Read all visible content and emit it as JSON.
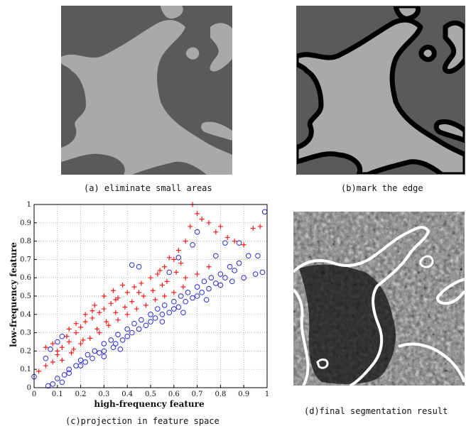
{
  "captions": {
    "a": "(a) eliminate small areas",
    "b": "(b)mark the edge",
    "c": "(c)projection in feature space",
    "d": "(d)final segmentation result"
  },
  "colors": {
    "dark_region": "#5a5a5a",
    "light_region": "#a9a9a9",
    "edge": "#000000",
    "series_plus": "#ff1a1a",
    "series_circle": "#2a2ad6",
    "contour": "#ffffff"
  },
  "chart_data": {
    "type": "scatter",
    "xlabel": "high-frequency feature",
    "ylabel": "low-frequency feature",
    "xlim": [
      0,
      1
    ],
    "ylim": [
      0,
      1
    ],
    "xticks": [
      "0",
      "0.1",
      "0.2",
      "0.3",
      "0.4",
      "0.5",
      "0.6",
      "0.7",
      "0.8",
      "0.9",
      "1"
    ],
    "yticks": [
      "0",
      "0.1",
      "0.2",
      "0.3",
      "0.4",
      "0.5",
      "0.6",
      "0.7",
      "0.8",
      "0.9",
      "1"
    ],
    "grid": true,
    "series": [
      {
        "marker": "plus",
        "color": "#ff1a1a",
        "points": [
          [
            0.02,
            0.09
          ],
          [
            0.05,
            0.12
          ],
          [
            0.08,
            0.14
          ],
          [
            0.1,
            0.18
          ],
          [
            0.12,
            0.22
          ],
          [
            0.15,
            0.25
          ],
          [
            0.18,
            0.3
          ],
          [
            0.2,
            0.33
          ],
          [
            0.22,
            0.36
          ],
          [
            0.25,
            0.38
          ],
          [
            0.28,
            0.41
          ],
          [
            0.3,
            0.43
          ],
          [
            0.33,
            0.46
          ],
          [
            0.36,
            0.49
          ],
          [
            0.4,
            0.52
          ],
          [
            0.43,
            0.55
          ],
          [
            0.46,
            0.57
          ],
          [
            0.5,
            0.6
          ],
          [
            0.53,
            0.62
          ],
          [
            0.56,
            0.66
          ],
          [
            0.6,
            0.7
          ],
          [
            0.62,
            0.75
          ],
          [
            0.65,
            0.8
          ],
          [
            0.67,
            0.88
          ],
          [
            0.68,
            1.0
          ],
          [
            0.7,
            0.95
          ],
          [
            0.72,
            0.92
          ],
          [
            0.75,
            0.9
          ],
          [
            0.78,
            0.85
          ],
          [
            0.8,
            0.88
          ],
          [
            0.83,
            0.82
          ],
          [
            0.86,
            0.8
          ],
          [
            0.9,
            0.78
          ],
          [
            0.94,
            0.87
          ],
          [
            0.97,
            0.88
          ],
          [
            0.12,
            0.15
          ],
          [
            0.16,
            0.19
          ],
          [
            0.2,
            0.24
          ],
          [
            0.24,
            0.27
          ],
          [
            0.28,
            0.3
          ],
          [
            0.32,
            0.34
          ],
          [
            0.36,
            0.37
          ],
          [
            0.4,
            0.4
          ],
          [
            0.44,
            0.43
          ],
          [
            0.48,
            0.45
          ],
          [
            0.52,
            0.48
          ],
          [
            0.56,
            0.5
          ],
          [
            0.6,
            0.52
          ],
          [
            0.64,
            0.55
          ],
          [
            0.1,
            0.2
          ],
          [
            0.14,
            0.28
          ],
          [
            0.18,
            0.35
          ],
          [
            0.22,
            0.4
          ],
          [
            0.26,
            0.45
          ],
          [
            0.3,
            0.5
          ],
          [
            0.34,
            0.53
          ],
          [
            0.38,
            0.56
          ],
          [
            0.05,
            0.22
          ],
          [
            0.08,
            0.24
          ],
          [
            0.15,
            0.32
          ],
          [
            0.25,
            0.42
          ],
          [
            0.35,
            0.48
          ],
          [
            0.45,
            0.52
          ],
          [
            0.55,
            0.56
          ],
          [
            0.65,
            0.6
          ],
          [
            0.7,
            0.62
          ],
          [
            0.75,
            0.66
          ],
          [
            0.17,
            0.21
          ],
          [
            0.21,
            0.26
          ],
          [
            0.27,
            0.32
          ],
          [
            0.31,
            0.36
          ],
          [
            0.35,
            0.41
          ],
          [
            0.39,
            0.44
          ],
          [
            0.42,
            0.47
          ],
          [
            0.47,
            0.5
          ],
          [
            0.51,
            0.53
          ],
          [
            0.57,
            0.58
          ],
          [
            0.61,
            0.63
          ],
          [
            0.63,
            0.68
          ],
          [
            0.58,
            0.71
          ],
          [
            0.54,
            0.64
          ]
        ]
      },
      {
        "marker": "circle",
        "color": "#2a2ad6",
        "points": [
          [
            0.0,
            0.06
          ],
          [
            0.08,
            0.02
          ],
          [
            0.1,
            0.05
          ],
          [
            0.13,
            0.07
          ],
          [
            0.15,
            0.1
          ],
          [
            0.18,
            0.12
          ],
          [
            0.2,
            0.15
          ],
          [
            0.23,
            0.18
          ],
          [
            0.26,
            0.2
          ],
          [
            0.3,
            0.24
          ],
          [
            0.33,
            0.26
          ],
          [
            0.36,
            0.29
          ],
          [
            0.4,
            0.32
          ],
          [
            0.43,
            0.35
          ],
          [
            0.46,
            0.37
          ],
          [
            0.5,
            0.4
          ],
          [
            0.53,
            0.43
          ],
          [
            0.56,
            0.45
          ],
          [
            0.6,
            0.47
          ],
          [
            0.63,
            0.5
          ],
          [
            0.66,
            0.52
          ],
          [
            0.7,
            0.55
          ],
          [
            0.73,
            0.58
          ],
          [
            0.76,
            0.6
          ],
          [
            0.8,
            0.62
          ],
          [
            0.84,
            0.66
          ],
          [
            0.88,
            0.68
          ],
          [
            0.92,
            0.72
          ],
          [
            0.96,
            0.72
          ],
          [
            0.99,
            0.96
          ],
          [
            0.98,
            0.63
          ],
          [
            0.95,
            0.62
          ],
          [
            0.9,
            0.6
          ],
          [
            0.85,
            0.58
          ],
          [
            0.8,
            0.56
          ],
          [
            0.75,
            0.54
          ],
          [
            0.7,
            0.5
          ],
          [
            0.65,
            0.47
          ],
          [
            0.6,
            0.43
          ],
          [
            0.55,
            0.4
          ],
          [
            0.5,
            0.36
          ],
          [
            0.45,
            0.32
          ],
          [
            0.4,
            0.28
          ],
          [
            0.35,
            0.24
          ],
          [
            0.3,
            0.2
          ],
          [
            0.25,
            0.16
          ],
          [
            0.2,
            0.12
          ],
          [
            0.15,
            0.08
          ],
          [
            0.12,
            0.03
          ],
          [
            0.06,
            0.01
          ],
          [
            0.22,
            0.14
          ],
          [
            0.28,
            0.19
          ],
          [
            0.34,
            0.22
          ],
          [
            0.38,
            0.26
          ],
          [
            0.42,
            0.3
          ],
          [
            0.48,
            0.34
          ],
          [
            0.52,
            0.38
          ],
          [
            0.58,
            0.41
          ],
          [
            0.62,
            0.44
          ],
          [
            0.68,
            0.49
          ],
          [
            0.72,
            0.52
          ],
          [
            0.78,
            0.57
          ],
          [
            0.82,
            0.6
          ],
          [
            0.86,
            0.64
          ],
          [
            0.42,
            0.67
          ],
          [
            0.45,
            0.66
          ],
          [
            0.62,
            0.71
          ],
          [
            0.68,
            0.78
          ],
          [
            0.7,
            0.85
          ],
          [
            0.78,
            0.72
          ],
          [
            0.82,
            0.79
          ],
          [
            0.88,
            0.79
          ],
          [
            0.05,
            0.16
          ],
          [
            0.07,
            0.21
          ],
          [
            0.1,
            0.25
          ],
          [
            0.12,
            0.28
          ],
          [
            0.3,
            0.17
          ],
          [
            0.37,
            0.21
          ],
          [
            0.55,
            0.36
          ],
          [
            0.64,
            0.41
          ],
          [
            0.74,
            0.48
          ],
          [
            0.58,
            0.63
          ]
        ]
      }
    ]
  }
}
